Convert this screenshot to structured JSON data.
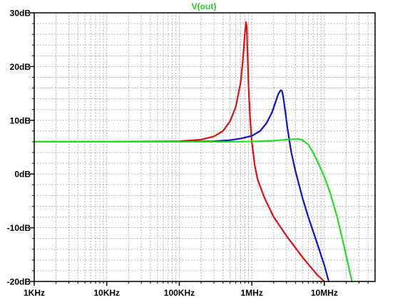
{
  "chart_data": {
    "type": "line",
    "title": "V(out)",
    "title_color": "#22cc22",
    "xscale": "log",
    "xlim": [
      1000,
      50000000
    ],
    "ylim": [
      -20,
      30
    ],
    "grid": true,
    "x_ticks": [
      {
        "value": 1000,
        "label": "1KHz"
      },
      {
        "value": 10000,
        "label": "10KHz"
      },
      {
        "value": 100000,
        "label": "100KHz"
      },
      {
        "value": 1000000,
        "label": "1MHz"
      },
      {
        "value": 10000000,
        "label": "10MHz"
      }
    ],
    "y_ticks": [
      {
        "value": 30,
        "label": "30dB"
      },
      {
        "value": 20,
        "label": "20dB"
      },
      {
        "value": 10,
        "label": "10dB"
      },
      {
        "value": 0,
        "label": "0dB"
      },
      {
        "value": -10,
        "label": "-10dB"
      },
      {
        "value": -20,
        "label": "-20dB"
      }
    ],
    "series": [
      {
        "color": "#dd1111",
        "x": [
          1000,
          10000,
          100000,
          200000,
          300000,
          400000,
          500000,
          600000,
          700000,
          750000,
          800000,
          830000,
          850000,
          870000,
          900000,
          950000,
          1000000,
          1100000,
          1200000,
          1500000,
          2000000,
          3000000,
          5000000,
          8000000,
          10000000
        ],
        "y": [
          6,
          6,
          6.1,
          6.4,
          7.0,
          8.0,
          9.8,
          12.5,
          17.0,
          21.0,
          26.0,
          28.3,
          27.5,
          23.0,
          16.5,
          10.0,
          6.0,
          1.5,
          -1.0,
          -4.5,
          -8.0,
          -11.5,
          -15.5,
          -18.8,
          -20
        ]
      },
      {
        "color": "#1111cc",
        "x": [
          1000,
          10000,
          100000,
          300000,
          500000,
          700000,
          1000000,
          1300000,
          1600000,
          1900000,
          2100000,
          2300000,
          2500000,
          2600000,
          2700000,
          2900000,
          3100000,
          3500000,
          4000000,
          5000000,
          6000000,
          8000000,
          10000000,
          11500000
        ],
        "y": [
          6,
          6,
          6,
          6.1,
          6.3,
          6.6,
          7.1,
          8.0,
          9.5,
          11.5,
          13.2,
          14.8,
          15.6,
          15.5,
          14.5,
          11.5,
          8.5,
          4.0,
          0.5,
          -4.5,
          -8.0,
          -13.0,
          -17.0,
          -20
        ]
      },
      {
        "color": "#22dd22",
        "x": [
          1000,
          10000,
          100000,
          500000,
          1000000,
          2000000,
          3000000,
          4000000,
          4500000,
          5000000,
          6000000,
          7000000,
          8000000,
          10000000,
          12000000,
          15000000,
          18000000,
          21000000,
          24000000
        ],
        "y": [
          6,
          6,
          6,
          6,
          6.05,
          6.2,
          6.4,
          6.5,
          6.5,
          6.3,
          5.5,
          4.0,
          2.4,
          -0.5,
          -3.5,
          -8.0,
          -12.5,
          -16.5,
          -20
        ]
      }
    ]
  }
}
